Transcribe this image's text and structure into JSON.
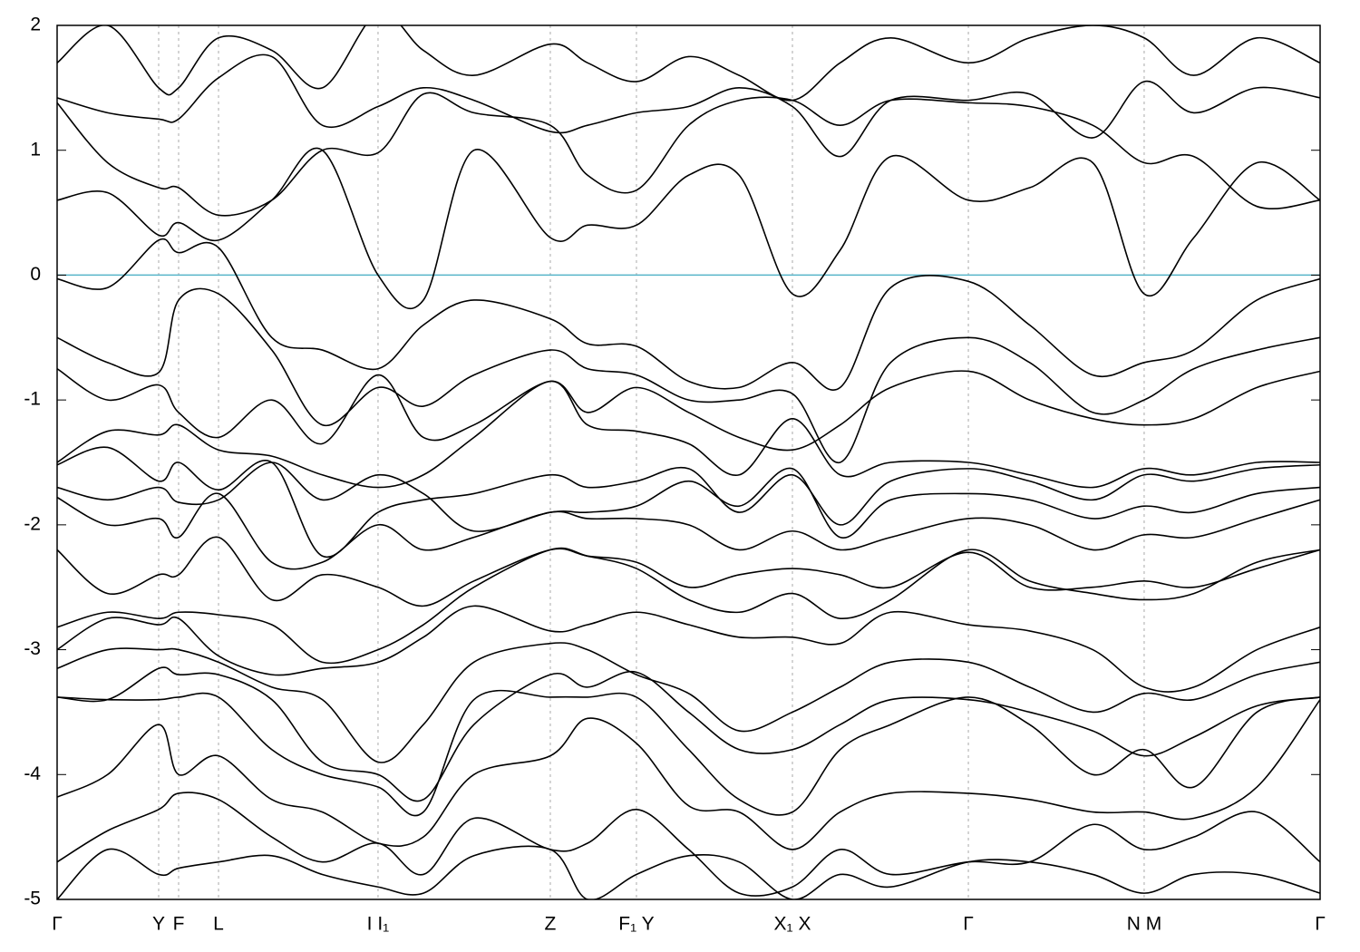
{
  "chart_data": {
    "type": "line",
    "x": [
      0,
      0.04,
      0.0804,
      0.0962,
      0.1278,
      0.17,
      0.21,
      0.2541,
      0.29,
      0.33,
      0.3905,
      0.42,
      0.4587,
      0.5,
      0.54,
      0.5822,
      0.62,
      0.66,
      0.7215,
      0.77,
      0.82,
      0.8607,
      0.9,
      0.95,
      1.0
    ],
    "color": "#000000",
    "series": [
      {
        "values": [
          1.7,
          2.0,
          1.5,
          1.5,
          1.9,
          1.8,
          1.5,
          2.1,
          1.8,
          1.6,
          1.85,
          1.7,
          1.55,
          1.75,
          1.6,
          1.4,
          1.7,
          1.9,
          1.7,
          1.9,
          2.0,
          1.9,
          1.6,
          1.9,
          1.7
        ]
      },
      {
        "values": [
          1.42,
          1.3,
          1.25,
          1.25,
          1.58,
          1.75,
          1.2,
          1.35,
          1.5,
          1.4,
          1.15,
          1.2,
          1.3,
          1.35,
          1.5,
          1.35,
          0.95,
          1.4,
          1.4,
          1.45,
          1.1,
          1.55,
          1.3,
          1.5,
          1.42
        ]
      },
      {
        "values": [
          1.38,
          0.9,
          0.7,
          0.7,
          0.48,
          0.6,
          1.0,
          0.98,
          1.45,
          1.3,
          1.2,
          0.8,
          0.68,
          1.2,
          1.4,
          1.4,
          1.2,
          1.4,
          1.38,
          1.35,
          1.2,
          0.9,
          0.95,
          0.55,
          0.6
        ]
      },
      {
        "values": [
          0.6,
          0.66,
          0.32,
          0.42,
          0.28,
          0.6,
          1.0,
          0.0,
          -0.2,
          1.0,
          0.3,
          0.4,
          0.4,
          0.8,
          0.8,
          -0.15,
          0.2,
          0.95,
          0.6,
          0.7,
          0.9,
          -0.15,
          0.3,
          0.9,
          0.6
        ]
      },
      {
        "values": [
          -0.03,
          -0.1,
          0.28,
          0.18,
          0.22,
          -0.5,
          -0.6,
          -0.75,
          -0.4,
          -0.2,
          -0.35,
          -0.55,
          -0.57,
          -0.85,
          -0.9,
          -0.7,
          -0.9,
          -0.1,
          -0.05,
          -0.4,
          -0.8,
          -0.7,
          -0.6,
          -0.2,
          -0.03
        ]
      },
      {
        "values": [
          -0.5,
          -0.7,
          -0.78,
          -0.2,
          -0.15,
          -0.6,
          -1.2,
          -0.9,
          -1.05,
          -0.8,
          -0.6,
          -0.75,
          -0.8,
          -1.0,
          -1.0,
          -0.95,
          -1.5,
          -0.7,
          -0.5,
          -0.7,
          -1.1,
          -1.0,
          -0.75,
          -0.6,
          -0.5
        ]
      },
      {
        "values": [
          -0.75,
          -1.0,
          -0.88,
          -1.1,
          -1.3,
          -1.0,
          -1.35,
          -0.8,
          -1.3,
          -1.2,
          -0.85,
          -1.1,
          -0.9,
          -1.1,
          -1.3,
          -1.4,
          -1.2,
          -0.9,
          -0.77,
          -1.0,
          -1.15,
          -1.2,
          -1.15,
          -0.9,
          -0.77
        ]
      },
      {
        "values": [
          -1.5,
          -1.25,
          -1.28,
          -1.2,
          -1.4,
          -1.45,
          -1.6,
          -1.7,
          -1.6,
          -1.3,
          -0.85,
          -1.2,
          -1.25,
          -1.35,
          -1.6,
          -1.15,
          -1.6,
          -1.5,
          -1.5,
          -1.6,
          -1.7,
          -1.55,
          -1.6,
          -1.5,
          -1.5
        ]
      },
      {
        "values": [
          -1.52,
          -1.38,
          -1.65,
          -1.5,
          -1.72,
          -1.5,
          -2.25,
          -1.9,
          -1.8,
          -1.75,
          -1.6,
          -1.7,
          -1.65,
          -1.55,
          -1.9,
          -1.6,
          -2.0,
          -1.65,
          -1.55,
          -1.65,
          -1.8,
          -1.6,
          -1.65,
          -1.55,
          -1.52
        ]
      },
      {
        "values": [
          -1.7,
          -1.8,
          -1.7,
          -1.82,
          -1.8,
          -1.5,
          -1.8,
          -1.6,
          -1.75,
          -2.05,
          -1.9,
          -1.9,
          -1.85,
          -1.65,
          -1.85,
          -1.55,
          -2.1,
          -1.8,
          -1.75,
          -1.8,
          -1.95,
          -1.85,
          -1.9,
          -1.75,
          -1.7
        ]
      },
      {
        "values": [
          -1.78,
          -2.0,
          -1.95,
          -2.1,
          -1.75,
          -2.3,
          -2.3,
          -2.0,
          -2.2,
          -2.1,
          -1.9,
          -1.95,
          -1.95,
          -2.0,
          -2.2,
          -2.05,
          -2.2,
          -2.1,
          -1.95,
          -2.0,
          -2.2,
          -2.08,
          -2.1,
          -1.95,
          -1.8
        ]
      },
      {
        "values": [
          -2.2,
          -2.55,
          -2.4,
          -2.4,
          -2.1,
          -2.6,
          -2.4,
          -2.5,
          -2.65,
          -2.45,
          -2.2,
          -2.25,
          -2.3,
          -2.5,
          -2.4,
          -2.35,
          -2.4,
          -2.5,
          -2.22,
          -2.5,
          -2.5,
          -2.45,
          -2.5,
          -2.35,
          -2.2
        ]
      },
      {
        "values": [
          -2.82,
          -2.7,
          -2.75,
          -2.7,
          -2.72,
          -2.8,
          -3.1,
          -3.0,
          -2.8,
          -2.5,
          -2.2,
          -2.25,
          -2.35,
          -2.6,
          -2.7,
          -2.55,
          -2.75,
          -2.6,
          -2.2,
          -2.45,
          -2.55,
          -2.6,
          -2.55,
          -2.3,
          -2.2
        ]
      },
      {
        "values": [
          -3.0,
          -2.75,
          -2.8,
          -2.75,
          -3.05,
          -3.2,
          -3.15,
          -3.1,
          -2.9,
          -2.65,
          -2.85,
          -2.8,
          -2.7,
          -2.8,
          -2.9,
          -2.9,
          -2.95,
          -2.7,
          -2.8,
          -2.85,
          -3.0,
          -3.3,
          -3.3,
          -3.0,
          -2.82
        ]
      },
      {
        "values": [
          -3.15,
          -3.0,
          -3.0,
          -3.0,
          -3.1,
          -3.3,
          -3.4,
          -3.9,
          -3.6,
          -3.1,
          -2.95,
          -3.0,
          -3.2,
          -3.35,
          -3.65,
          -3.5,
          -3.3,
          -3.1,
          -3.1,
          -3.3,
          -3.5,
          -3.35,
          -3.4,
          -3.2,
          -3.1
        ]
      },
      {
        "values": [
          -3.38,
          -3.4,
          -3.15,
          -3.2,
          -3.2,
          -3.4,
          -3.9,
          -4.0,
          -4.2,
          -3.6,
          -3.2,
          -3.3,
          -3.18,
          -3.5,
          -3.8,
          -3.8,
          -3.6,
          -3.4,
          -3.4,
          -3.5,
          -3.65,
          -3.85,
          -3.7,
          -3.45,
          -3.38
        ]
      },
      {
        "values": [
          -3.38,
          -3.4,
          -3.4,
          -3.38,
          -3.38,
          -3.8,
          -4.0,
          -4.1,
          -4.3,
          -3.4,
          -3.38,
          -3.38,
          -3.38,
          -3.8,
          -4.2,
          -4.3,
          -3.8,
          -3.6,
          -3.38,
          -3.6,
          -4.0,
          -3.8,
          -4.1,
          -3.5,
          -3.38
        ]
      },
      {
        "values": [
          -4.18,
          -4.0,
          -3.6,
          -4.0,
          -3.85,
          -4.2,
          -4.3,
          -4.55,
          -4.5,
          -4.0,
          -3.85,
          -3.55,
          -3.75,
          -4.25,
          -4.3,
          -4.6,
          -4.3,
          -4.15,
          -4.15,
          -4.2,
          -4.3,
          -4.3,
          -4.35,
          -4.1,
          -3.4
        ]
      },
      {
        "values": [
          -4.7,
          -4.45,
          -4.28,
          -4.15,
          -4.2,
          -4.5,
          -4.7,
          -4.55,
          -4.8,
          -4.35,
          -4.6,
          -4.55,
          -4.28,
          -4.6,
          -4.95,
          -4.9,
          -4.6,
          -4.8,
          -4.7,
          -4.7,
          -4.4,
          -4.6,
          -4.5,
          -4.3,
          -4.7
        ]
      },
      {
        "values": [
          -5.0,
          -4.6,
          -4.8,
          -4.75,
          -4.7,
          -4.65,
          -4.8,
          -4.9,
          -4.95,
          -4.65,
          -4.6,
          -5.0,
          -4.8,
          -4.65,
          -4.7,
          -5.0,
          -4.8,
          -4.9,
          -4.7,
          -4.7,
          -4.8,
          -4.95,
          -4.8,
          -4.8,
          -4.95
        ]
      }
    ],
    "xlim": [
      0,
      1
    ],
    "xticks": [
      {
        "value": 0,
        "label": "Γ"
      },
      {
        "value": 0.0804,
        "label": "Y"
      },
      {
        "value": 0.0962,
        "label": "F"
      },
      {
        "value": 0.1278,
        "label": "L"
      },
      {
        "value": 0.2541,
        "label": "I  I₁"
      },
      {
        "value": 0.3905,
        "label": "Z"
      },
      {
        "value": 0.4587,
        "label": "F₁ Y"
      },
      {
        "value": 0.5822,
        "label": "X₁ X"
      },
      {
        "value": 0.7215,
        "label": "Γ"
      },
      {
        "value": 0.8607,
        "label": "N M"
      },
      {
        "value": 1,
        "label": "Γ"
      }
    ],
    "ylim": [
      -5,
      2
    ],
    "yticks": [
      -5,
      -4,
      -3,
      -2,
      -1,
      0,
      1,
      2
    ],
    "xgrid": true,
    "reference_line": {
      "y": 0,
      "color": "#56b4c9"
    }
  }
}
